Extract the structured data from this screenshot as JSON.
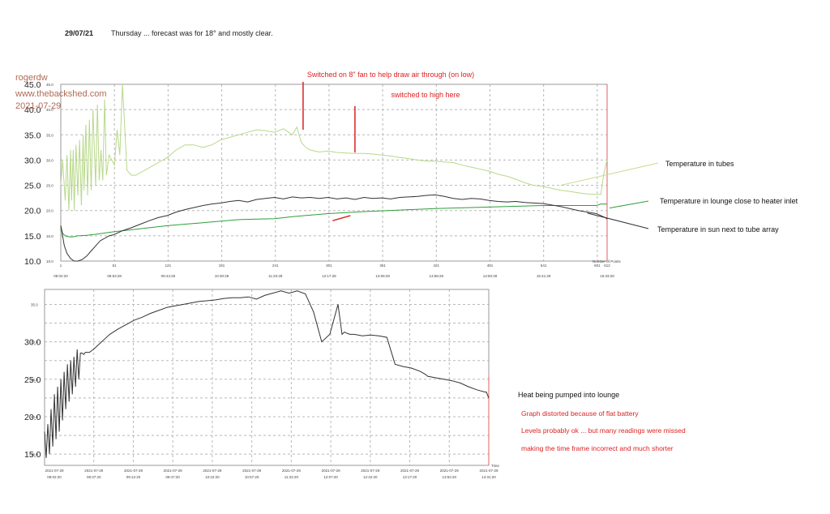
{
  "header": {
    "date": "29/07/21",
    "note": "Thursday  ...  forecast was for 18° and mostly clear."
  },
  "watermark": {
    "line1": "rogerdw",
    "line2": "www.thebackshed.com",
    "line3": "2021-07-29"
  },
  "colors": {
    "tubes": "#b8d88a",
    "lounge_inlet": "#2e9e3a",
    "sun": "#333333",
    "annotation_red": "#dd2222",
    "pointer_line": "#c9d98a"
  },
  "chart_data": [
    {
      "type": "line",
      "ylim": [
        10.0,
        45.0
      ],
      "yticks": [
        "10.0",
        "15.0",
        "20.0",
        "25.0",
        "30.0",
        "35.0",
        "40.0",
        "45.0"
      ],
      "xticks_top": [
        "1",
        "61",
        "121",
        "181",
        "241",
        "301",
        "361",
        "421",
        "481",
        "541",
        "601",
        "612"
      ],
      "xticks_bottom": [
        "08:02:20",
        "08:53:28",
        "09:44:28",
        "10:30:28",
        "11:20:28",
        "12:17:28",
        "13:08:28",
        "13:58:28",
        "14:50:28",
        "15:41:28",
        "16:33:28"
      ],
      "x_caption": "Number of Points",
      "series": [
        {
          "name": "Temperature in tubes",
          "x": [
            1,
            3,
            6,
            8,
            10,
            12,
            13,
            15,
            16,
            18,
            20,
            22,
            24,
            26,
            27,
            29,
            31,
            33,
            35,
            37,
            40,
            42,
            44,
            46,
            48,
            50,
            52,
            55,
            58,
            61,
            64,
            67,
            70,
            75,
            80,
            85,
            90,
            100,
            110,
            120,
            130,
            140,
            150,
            160,
            170,
            180,
            190,
            200,
            210,
            220,
            230,
            240,
            250,
            260,
            265,
            270,
            275,
            280,
            290,
            300,
            310,
            320,
            330,
            340,
            350,
            360,
            370,
            380,
            390,
            400,
            410,
            420,
            430,
            440,
            450,
            460,
            470,
            480,
            490,
            500,
            510,
            520,
            530,
            540,
            550,
            560,
            570,
            580,
            590,
            600,
            605,
            608,
            610,
            612
          ],
          "y": [
            25,
            30,
            22,
            31,
            20,
            32,
            22,
            32,
            20,
            33,
            23,
            34,
            21,
            35,
            24,
            37,
            23,
            38,
            24,
            40,
            25,
            41,
            26,
            32,
            26,
            42,
            27,
            31,
            30,
            29,
            36,
            31,
            45,
            28,
            27,
            27,
            27.5,
            28.5,
            29.5,
            30.5,
            32,
            33,
            33,
            32.5,
            33,
            34,
            34.5,
            35,
            35.5,
            36,
            35.8,
            35.5,
            36.2,
            35,
            36.5,
            33.5,
            32.5,
            32,
            31.6,
            31.8,
            31.5,
            31.4,
            31.3,
            31.3,
            31.2,
            31,
            30.8,
            30.5,
            30.3,
            30,
            29.8,
            29.8,
            29.6,
            29.5,
            29,
            28.6,
            28.2,
            27.8,
            27.2,
            26.8,
            26.2,
            25.5,
            25,
            24.8,
            24.4,
            24,
            23.8,
            23.5,
            23.3,
            23.2,
            23.2,
            27,
            28.5,
            30
          ]
        },
        {
          "name": "Temperature in lounge close to heater inlet",
          "x": [
            1,
            3,
            6,
            10,
            15,
            20,
            30,
            40,
            60,
            80,
            100,
            120,
            140,
            160,
            180,
            200,
            220,
            240,
            260,
            300,
            340,
            380,
            420,
            460,
            500,
            540,
            560,
            580,
            600,
            605,
            612
          ],
          "y": [
            17,
            15.5,
            15,
            14.8,
            14.8,
            15,
            15.1,
            15.3,
            15.8,
            16.2,
            16.6,
            17,
            17.3,
            17.6,
            17.9,
            18.2,
            18.3,
            18.4,
            18.8,
            19.4,
            19.8,
            20.1,
            20.4,
            20.6,
            20.8,
            21,
            21,
            21,
            21,
            21.3,
            21.3
          ]
        },
        {
          "name": "Temperature in sun next to tube array",
          "x": [
            1,
            3,
            5,
            8,
            12,
            16,
            20,
            25,
            30,
            35,
            40,
            45,
            50,
            55,
            60,
            70,
            80,
            90,
            100,
            110,
            120,
            130,
            140,
            150,
            160,
            170,
            180,
            190,
            200,
            210,
            220,
            230,
            240,
            250,
            260,
            270,
            280,
            290,
            300,
            310,
            320,
            330,
            340,
            350,
            360,
            370,
            380,
            390,
            400,
            410,
            420,
            430,
            440,
            450,
            460,
            470,
            480,
            490,
            500,
            510,
            520,
            530,
            540,
            550,
            560,
            570,
            580,
            590,
            600,
            605,
            610,
            612
          ],
          "y": [
            17,
            15,
            13,
            11.5,
            10.5,
            10,
            10,
            10.3,
            11,
            12,
            13,
            14,
            14.5,
            15,
            15.2,
            16,
            16.6,
            17.3,
            18,
            18.6,
            19,
            19.7,
            20.2,
            20.6,
            21,
            21.3,
            21.5,
            21.8,
            22,
            21.7,
            22.2,
            22.4,
            22.6,
            22.3,
            22.7,
            22.5,
            22.6,
            22.4,
            22.6,
            22.3,
            22.5,
            22.2,
            22.6,
            22.4,
            22.5,
            22.3,
            22.6,
            22.7,
            22.8,
            23,
            23.1,
            22.8,
            22.4,
            22.2,
            22.4,
            22.3,
            22,
            21.8,
            21.7,
            21.8,
            21.6,
            21.5,
            21.4,
            21.1,
            20.8,
            20.4,
            20,
            19.7,
            19.4,
            19,
            18.6,
            18.3
          ]
        }
      ],
      "annotations": [
        {
          "text": "Switched on 8\" fan to help draw air through (on low)",
          "x": 272,
          "y": 36
        },
        {
          "text": "switched to high here",
          "x": 330,
          "y": 31.5
        }
      ],
      "labels": [
        {
          "series": "Temperature in tubes",
          "text": "Temperature in tubes"
        },
        {
          "series": "Temperature in lounge close to heater inlet",
          "text": "Temperature in lounge close to heater inlet"
        },
        {
          "series": "Temperature in sun next to tube array",
          "text": "Temperature in sun next to tube array"
        }
      ]
    },
    {
      "type": "line",
      "ylim": [
        13.5,
        37.0
      ],
      "yticks": [
        "15.0",
        "20.0",
        "25.0",
        "30.0"
      ],
      "xticks_date": [
        "2021-07-29",
        "2021-07-29",
        "2021-07-29",
        "2021-07-29",
        "2021-07-29",
        "2021-07-29",
        "2021-07-29",
        "2021-07-29",
        "2021-07-29",
        "2021-07-29",
        "2021-07-29",
        "2021-07-29"
      ],
      "xticks_time": [
        "08:02:20",
        "08:37:20",
        "09:12:20",
        "09:47:20",
        "10:22:20",
        "10:57:20",
        "11:32:20",
        "12:07:20",
        "12:42:20",
        "13:17:20",
        "13:52:20",
        "14:31:20"
      ],
      "x_caption": "Time",
      "title": "Heat being pumped into lounge",
      "notes": [
        "Graph distorted because of flat battery",
        "Levels probably ok  ...  but many readings were missed",
        "making the time frame incorrect and much shorter"
      ],
      "series": [
        {
          "x": [
            0,
            2,
            4,
            6,
            8,
            10,
            12,
            14,
            16,
            18,
            20,
            22,
            24,
            26,
            28,
            30,
            32,
            34,
            36,
            38,
            40,
            42,
            44,
            46,
            48,
            50,
            55,
            60,
            65,
            70,
            80,
            90,
            100,
            110,
            120,
            130,
            140,
            150,
            160,
            170,
            180,
            190,
            200,
            210,
            220,
            230,
            240,
            250,
            260,
            270,
            280,
            290,
            300,
            310,
            320,
            330,
            340,
            350,
            360,
            365,
            368,
            370,
            372,
            375,
            380,
            390,
            400,
            410,
            420,
            430,
            440,
            450,
            460,
            465,
            468,
            470,
            480,
            490,
            500,
            510,
            520,
            530,
            540,
            542,
            545
          ],
          "y": [
            18,
            14.5,
            19,
            15,
            21,
            16,
            23,
            17,
            24,
            18,
            25,
            19.5,
            26,
            21,
            27,
            22,
            27.5,
            23,
            28,
            24,
            29,
            25,
            28.5,
            28.5,
            28.3,
            28.6,
            28.6,
            29,
            29.5,
            30,
            31,
            31.7,
            32.3,
            32.9,
            33.3,
            33.8,
            34.2,
            34.6,
            34.8,
            35,
            35.2,
            35.4,
            35.5,
            35.6,
            35.8,
            35.9,
            35.9,
            36,
            35.7,
            36.2,
            36.5,
            36.8,
            36.5,
            36.8,
            36.4,
            34,
            30,
            31,
            35,
            31,
            31.3,
            31.2,
            31.1,
            31,
            31,
            30.8,
            30.9,
            30.8,
            30.6,
            27,
            26.7,
            26.5,
            26.1,
            25.8,
            25.6,
            25.4,
            25.2,
            25,
            24.8,
            24.5,
            24,
            23.6,
            23.3,
            23.3,
            22.5
          ]
        }
      ]
    }
  ]
}
